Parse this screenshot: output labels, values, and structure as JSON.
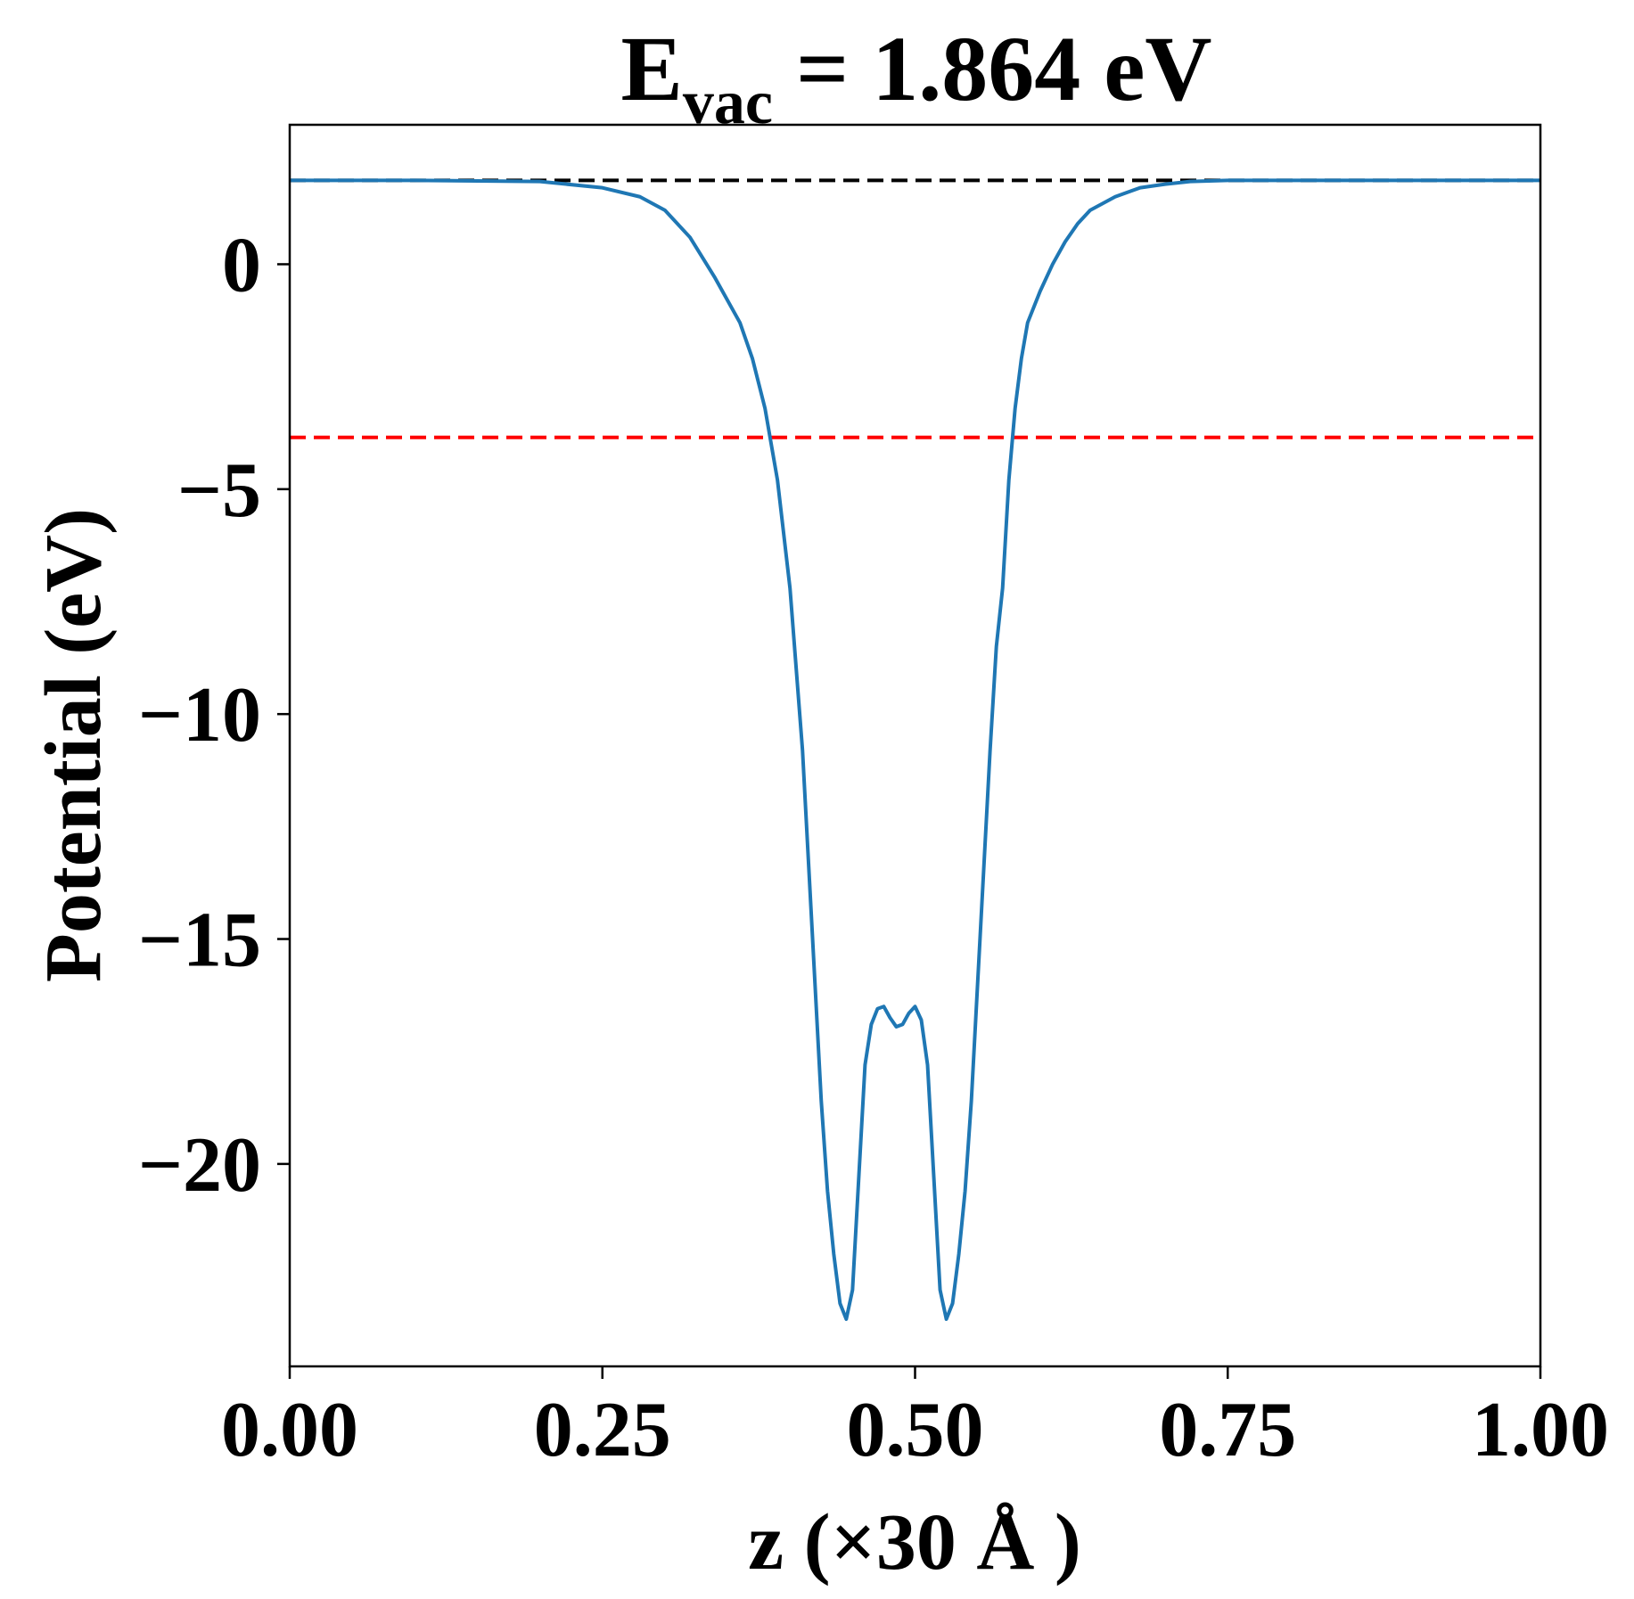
{
  "chart_data": {
    "type": "line",
    "title": {
      "main": "E",
      "subscript": "vac",
      "rest": " = 1.864 eV"
    },
    "xlabel": "z (×30 Å )",
    "ylabel": "Potential (eV)",
    "xlim": [
      0,
      1
    ],
    "ylim": [
      -24.5,
      3.1
    ],
    "xticks": [
      0.0,
      0.25,
      0.5,
      0.75,
      1.0
    ],
    "xtick_labels": [
      "0.00",
      "0.25",
      "0.50",
      "0.75",
      "1.00"
    ],
    "yticks": [
      0,
      -5,
      -10,
      -15,
      -20
    ],
    "ytick_labels": [
      "0",
      "−5",
      "−10",
      "−15",
      "−20"
    ],
    "grid": false,
    "hlines": [
      {
        "y": 1.864,
        "color": "#000000",
        "style": "dashed"
      },
      {
        "y": -3.85,
        "color": "#ff0000",
        "style": "dashed"
      }
    ],
    "series": [
      {
        "color": "#1f77b4",
        "x": [
          0.0,
          0.1,
          0.2,
          0.25,
          0.28,
          0.3,
          0.32,
          0.34,
          0.36,
          0.37,
          0.38,
          0.39,
          0.4,
          0.41,
          0.415,
          0.42,
          0.425,
          0.43,
          0.435,
          0.44,
          0.445,
          0.45,
          0.455,
          0.46,
          0.465,
          0.47,
          0.475,
          0.48,
          0.485,
          0.49,
          0.495,
          0.5,
          0.505,
          0.51,
          0.515,
          0.52,
          0.525,
          0.53,
          0.535,
          0.54,
          0.545,
          0.55,
          0.555,
          0.56,
          0.565,
          0.57,
          0.575,
          0.58,
          0.585,
          0.59,
          0.6,
          0.61,
          0.62,
          0.63,
          0.64,
          0.66,
          0.68,
          0.7,
          0.72,
          0.75,
          0.8,
          0.9,
          1.0
        ],
        "y": [
          1.864,
          1.864,
          1.84,
          1.7,
          1.5,
          1.2,
          0.6,
          -0.3,
          -1.3,
          -2.1,
          -3.2,
          -4.8,
          -7.2,
          -10.8,
          -13.4,
          -16.0,
          -18.6,
          -20.6,
          -22.0,
          -23.1,
          -23.45,
          -22.8,
          -20.3,
          -17.8,
          -16.9,
          -16.55,
          -16.5,
          -16.75,
          -16.95,
          -16.9,
          -16.65,
          -16.5,
          -16.8,
          -17.8,
          -20.3,
          -22.8,
          -23.45,
          -23.1,
          -22.0,
          -20.6,
          -18.6,
          -16.0,
          -13.4,
          -10.8,
          -8.5,
          -7.2,
          -4.8,
          -3.2,
          -2.1,
          -1.3,
          -0.6,
          0.0,
          0.5,
          0.9,
          1.2,
          1.5,
          1.7,
          1.78,
          1.84,
          1.864,
          1.864,
          1.864,
          1.864
        ]
      }
    ]
  }
}
